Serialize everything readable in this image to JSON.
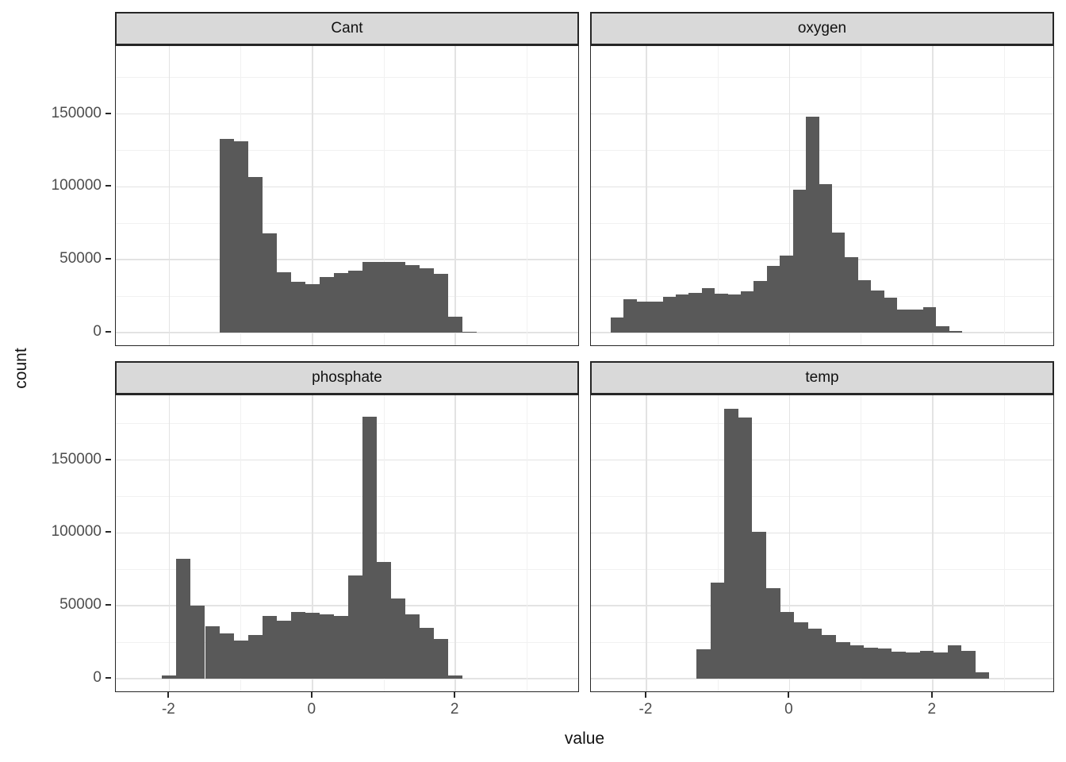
{
  "figure": {
    "x_axis_title": "value",
    "y_axis_title": "count"
  },
  "style": {
    "bar_fill": "#595959",
    "panel_background": "#ffffff",
    "strip_background": "#d9d9d9",
    "panel_border": "#262626",
    "grid_major_color": "#e3e3e3",
    "grid_minor_color": "#f1f1f1",
    "tick_label_color": "#4d4d4d",
    "axis_title_color": "#111111"
  },
  "chart_data": {
    "type": "bar",
    "subtype": "faceted-histogram",
    "facet_layout": "2x2",
    "xlabel": "value",
    "ylabel": "count",
    "x_tick_labels": [
      "-2",
      "0",
      "2"
    ],
    "x_tick_values": [
      -2,
      0,
      2
    ],
    "x_minor_values": [
      -1,
      1,
      3
    ],
    "y_tick_labels": [
      "0",
      "50000",
      "100000",
      "150000"
    ],
    "y_tick_values": [
      0,
      50000,
      100000,
      150000
    ],
    "y_minor_values": [
      25000,
      75000,
      125000,
      175000
    ],
    "xlim": [
      -2.75,
      3.74
    ],
    "ylim": [
      -9500,
      194500
    ],
    "grid": "on",
    "legend": "none",
    "panels": [
      {
        "facet": "Cant",
        "bin_start": -1.3,
        "bin_width": 0.2,
        "counts": [
          133000,
          131000,
          107000,
          68000,
          41500,
          35000,
          33000,
          38000,
          41000,
          42500,
          48500,
          48500,
          48500,
          46500,
          44000,
          40500,
          11000,
          600
        ]
      },
      {
        "facet": "oxygen",
        "bin_start": -2.5,
        "bin_width": 0.182,
        "counts": [
          10500,
          23000,
          21000,
          21500,
          24500,
          26000,
          27000,
          30500,
          26500,
          26000,
          28500,
          35500,
          46000,
          53000,
          98000,
          148000,
          102000,
          68500,
          52000,
          36000,
          29000,
          24000,
          16000,
          16000,
          17500,
          4500,
          1000
        ]
      },
      {
        "facet": "phosphate",
        "bin_start": -2.1,
        "bin_width": 0.2,
        "counts": [
          2000,
          82000,
          50000,
          36000,
          31000,
          26000,
          30000,
          43000,
          40000,
          45500,
          45000,
          44000,
          43000,
          71000,
          180000,
          80000,
          55000,
          44000,
          35000,
          27500,
          2000
        ]
      },
      {
        "facet": "temp",
        "bin_start": -1.3,
        "bin_width": 0.195,
        "counts": [
          20000,
          66000,
          185000,
          179000,
          101000,
          62000,
          46000,
          38500,
          34500,
          30000,
          25000,
          23000,
          21500,
          20500,
          18500,
          18000,
          19000,
          18000,
          23000,
          19000,
          4500
        ]
      }
    ]
  }
}
